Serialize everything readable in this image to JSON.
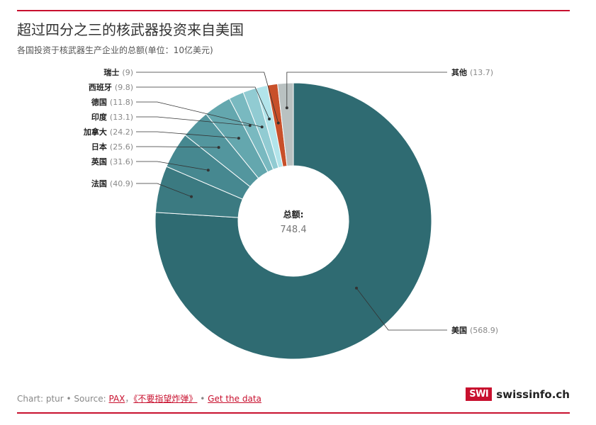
{
  "header": {
    "title": "超过四分之三的核武器投资来自美国",
    "subtitle": "各国投资于核武器生产企业的总额(单位：10亿美元)"
  },
  "colors": {
    "accent": "#c8102e",
    "leader_line": "#333333"
  },
  "chart_data": {
    "type": "pie",
    "variant": "donut",
    "center_label": "总额:",
    "center_value": "748.4",
    "slices": [
      {
        "label": "美国",
        "value": 568.9,
        "value_text": "(568.9)",
        "color": "#2f6b72"
      },
      {
        "label": "法国",
        "value": 40.9,
        "value_text": "(40.9)",
        "color": "#3b7a81"
      },
      {
        "label": "英国",
        "value": 31.6,
        "value_text": "(31.6)",
        "color": "#468890"
      },
      {
        "label": "日本",
        "value": 25.6,
        "value_text": "(25.6)",
        "color": "#53969e"
      },
      {
        "label": "加拿大",
        "value": 24.2,
        "value_text": "(24.2)",
        "color": "#64a7ae"
      },
      {
        "label": "印度",
        "value": 13.1,
        "value_text": "(13.1)",
        "color": "#79b9c0"
      },
      {
        "label": "德国",
        "value": 11.8,
        "value_text": "(11.8)",
        "color": "#91cbd2"
      },
      {
        "label": "西班牙",
        "value": 9.8,
        "value_text": "(9.8)",
        "color": "#b2e4ea"
      },
      {
        "label": "瑞士",
        "value": 9,
        "value_text": "(9)",
        "color": "#c8502a"
      },
      {
        "label": "其他",
        "value": 13.7,
        "value_text": "(13.7)",
        "color": "#b9c1c1"
      }
    ]
  },
  "footer": {
    "prefix": "Chart: ptur • Source: ",
    "link1": "PAX",
    "sep1": "，",
    "link2": "《不要指望炸弹》",
    "sep2": " • ",
    "link3": "Get the data"
  },
  "brand": {
    "logo_text": "SWI",
    "site": "swissinfo.ch"
  }
}
